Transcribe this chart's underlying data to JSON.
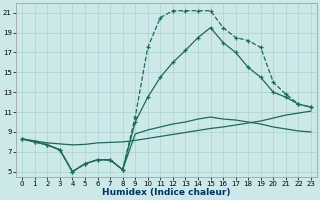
{
  "xlabel": "Humidex (Indice chaleur)",
  "bg_color": "#cce8e8",
  "grid_color": "#aad0d0",
  "line_color": "#1a6b5a",
  "xlim": [
    -0.5,
    23.5
  ],
  "ylim": [
    4.5,
    22.0
  ],
  "xticks": [
    0,
    1,
    2,
    3,
    4,
    5,
    6,
    7,
    8,
    9,
    10,
    11,
    12,
    13,
    14,
    15,
    16,
    17,
    18,
    19,
    20,
    21,
    22,
    23
  ],
  "yticks": [
    5,
    7,
    9,
    11,
    13,
    15,
    17,
    19,
    21
  ],
  "xlabel_fontsize": 6.5,
  "xlabel_color": "#003366",
  "tick_fontsize": 5.0,
  "series": [
    {
      "x": [
        0,
        1,
        2,
        3,
        4,
        5,
        6,
        7,
        8,
        9,
        10,
        11,
        12,
        13,
        14,
        15,
        16,
        17,
        18,
        19,
        20,
        21,
        22,
        23
      ],
      "y": [
        8.3,
        8.0,
        7.7,
        7.2,
        5.0,
        5.8,
        6.2,
        6.2,
        5.2,
        10.5,
        17.5,
        20.5,
        21.2,
        21.2,
        21.2,
        21.2,
        19.5,
        18.5,
        18.2,
        17.5,
        14.0,
        12.8,
        11.8,
        11.5
      ],
      "linestyle": "--",
      "marker": "+",
      "markersize": 3.5,
      "linewidth": 0.9
    },
    {
      "x": [
        0,
        1,
        2,
        3,
        4,
        5,
        6,
        7,
        8,
        9,
        10,
        11,
        12,
        13,
        14,
        15,
        16,
        17,
        18,
        19,
        20,
        21,
        22,
        23
      ],
      "y": [
        8.3,
        8.0,
        7.7,
        7.2,
        5.0,
        5.8,
        6.2,
        6.2,
        5.2,
        10.0,
        12.5,
        14.5,
        16.0,
        17.2,
        18.5,
        19.5,
        18.0,
        17.0,
        15.5,
        14.5,
        13.0,
        12.5,
        11.8,
        11.5
      ],
      "linestyle": "-",
      "marker": "+",
      "markersize": 3.5,
      "linewidth": 0.9
    },
    {
      "x": [
        0,
        1,
        2,
        3,
        4,
        5,
        6,
        7,
        8,
        9,
        10,
        11,
        12,
        13,
        14,
        15,
        16,
        17,
        18,
        19,
        20,
        21,
        22,
        23
      ],
      "y": [
        8.3,
        8.0,
        7.7,
        7.2,
        5.0,
        5.8,
        6.2,
        6.2,
        5.2,
        8.8,
        9.2,
        9.5,
        9.8,
        10.0,
        10.3,
        10.5,
        10.3,
        10.2,
        10.0,
        9.8,
        9.5,
        9.3,
        9.1,
        9.0
      ],
      "linestyle": "-",
      "marker": null,
      "markersize": 0,
      "linewidth": 0.9
    },
    {
      "x": [
        0,
        1,
        2,
        3,
        4,
        5,
        6,
        7,
        8,
        9,
        10,
        11,
        12,
        13,
        14,
        15,
        16,
        17,
        18,
        19,
        20,
        21,
        22,
        23
      ],
      "y": [
        8.3,
        8.1,
        7.9,
        7.8,
        7.7,
        7.75,
        7.9,
        7.95,
        8.0,
        8.15,
        8.35,
        8.55,
        8.75,
        8.95,
        9.15,
        9.35,
        9.5,
        9.7,
        9.9,
        10.1,
        10.4,
        10.7,
        10.9,
        11.1
      ],
      "linestyle": "-",
      "marker": null,
      "markersize": 0,
      "linewidth": 0.9
    }
  ]
}
